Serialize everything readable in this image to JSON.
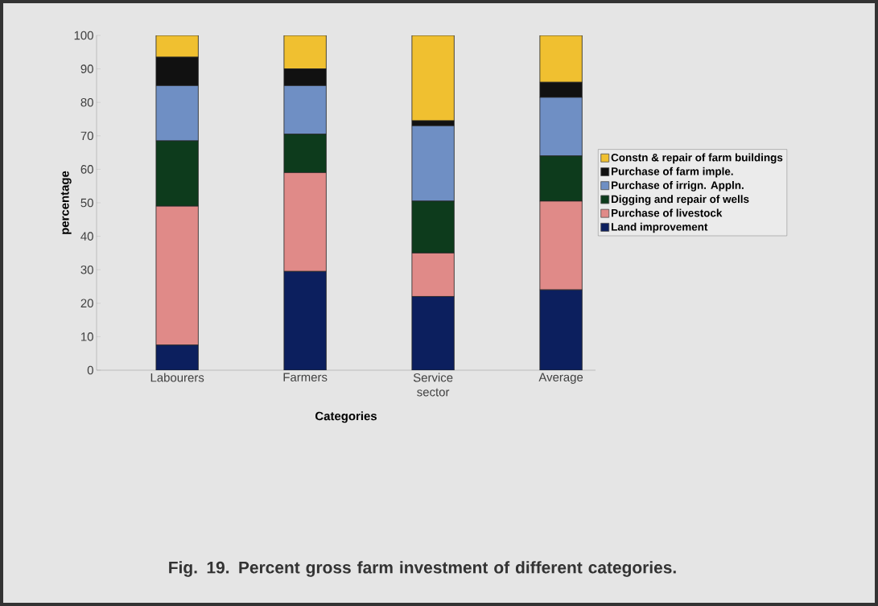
{
  "chart_data": {
    "type": "bar",
    "stacked": true,
    "title": "Fig. 19. Percent gross farm investment of different categories.",
    "xlabel": "Categories",
    "ylabel": "percentage",
    "categories": [
      "Labourers",
      "Farmers",
      "Service sector",
      "Average"
    ],
    "series": [
      {
        "name": "Land improvement",
        "color": "#0c1f5e",
        "values": [
          7.5,
          29.5,
          22,
          24
        ]
      },
      {
        "name": "Purchase of livestock",
        "color": "#e08a88",
        "values": [
          41.5,
          29.5,
          13,
          26.5
        ]
      },
      {
        "name": "Digging and repair of wells",
        "color": "#0d3b1c",
        "values": [
          19.5,
          11.5,
          15.5,
          13.5
        ]
      },
      {
        "name": "Purchase of irrign. Appln.",
        "color": "#6f8fc4",
        "values": [
          16.5,
          14.5,
          22.5,
          17.5
        ]
      },
      {
        "name": "Purchase of farm imple.",
        "color": "#111111",
        "values": [
          8.5,
          5,
          1.5,
          4.5
        ]
      },
      {
        "name": "Constn & repair of farm buildings",
        "color": "#f0c030",
        "values": [
          6.5,
          10,
          25.5,
          14
        ]
      }
    ],
    "ylim": [
      0,
      100
    ],
    "yticks": [
      0,
      10,
      20,
      30,
      40,
      50,
      60,
      70,
      80,
      90,
      100
    ],
    "legend": "right"
  }
}
